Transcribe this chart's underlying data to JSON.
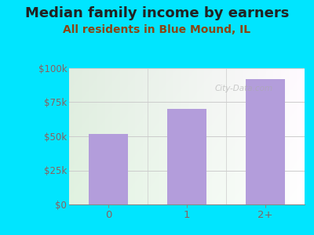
{
  "title": "Median family income by earners",
  "subtitle": "All residents in Blue Mound, IL",
  "categories": [
    "0",
    "1",
    "2+"
  ],
  "values": [
    52000,
    70000,
    92000
  ],
  "bar_color": "#b39ddb",
  "title_fontsize": 13,
  "subtitle_fontsize": 10,
  "subtitle_color": "#8B4513",
  "title_color": "#222222",
  "background_outer": "#00e5ff",
  "ylim": [
    0,
    100000
  ],
  "yticks": [
    0,
    25000,
    50000,
    75000,
    100000
  ],
  "ytick_labels": [
    "$0",
    "$25k",
    "$50k",
    "$75k",
    "$100k"
  ],
  "tick_color": "#8B6060",
  "grid_color": "#cccccc",
  "watermark": "City-Data.com"
}
